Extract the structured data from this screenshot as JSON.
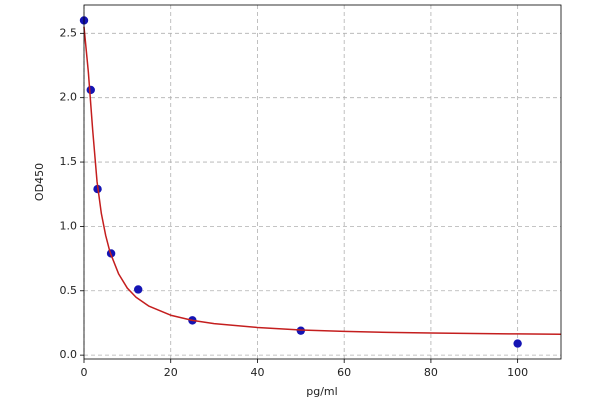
{
  "chart_data": {
    "type": "scatter",
    "xlabel": "pg/ml",
    "ylabel": "OD450",
    "xlim": [
      0,
      110
    ],
    "ylim": [
      -0.03,
      2.72
    ],
    "xticks": [
      0,
      20,
      40,
      60,
      80,
      100
    ],
    "yticks": [
      {
        "value": 0,
        "label": "0.0"
      },
      {
        "value": 0.5,
        "label": "0.5"
      },
      {
        "value": 1,
        "label": "1.0"
      },
      {
        "value": 1.5,
        "label": "1.5"
      },
      {
        "value": 2,
        "label": "2.0"
      },
      {
        "value": 2.5,
        "label": "2.5"
      }
    ],
    "grid": true,
    "series": [
      {
        "type": "scatter",
        "color": "#1414b4",
        "x": [
          0,
          1.56,
          3.125,
          6.25,
          12.5,
          25,
          50,
          100
        ],
        "values": [
          2.6,
          2.06,
          1.29,
          0.79,
          0.51,
          0.27,
          0.19,
          0.09
        ]
      },
      {
        "type": "line",
        "color": "#c41e1e",
        "x": [
          0,
          1,
          2,
          3,
          4,
          5,
          6,
          8,
          10,
          12,
          15,
          20,
          25,
          30,
          40,
          50,
          60,
          70,
          80,
          90,
          100,
          110
        ],
        "values": [
          2.55,
          2.2,
          1.75,
          1.35,
          1.1,
          0.93,
          0.8,
          0.63,
          0.52,
          0.45,
          0.38,
          0.31,
          0.27,
          0.245,
          0.215,
          0.195,
          0.185,
          0.177,
          0.172,
          0.168,
          0.165,
          0.162
        ]
      }
    ]
  }
}
